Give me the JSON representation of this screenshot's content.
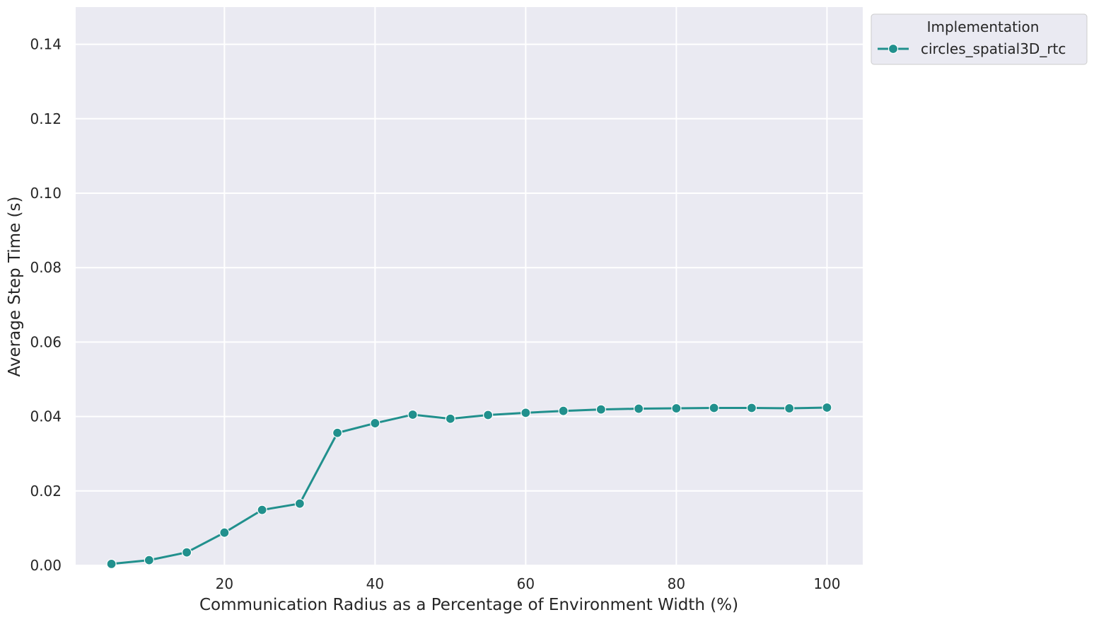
{
  "chart_data": {
    "type": "line",
    "title": "",
    "xlabel": "Communication Radius as a Percentage of Environment Width (%)",
    "ylabel": "Average Step Time (s)",
    "xlim": [
      0.25,
      104.75
    ],
    "ylim": [
      0,
      0.15
    ],
    "xticks": [
      20,
      40,
      60,
      80,
      100
    ],
    "yticks": [
      0.0,
      0.02,
      0.04,
      0.06,
      0.08,
      0.1,
      0.12,
      0.14
    ],
    "xtick_labels": [
      "20",
      "40",
      "60",
      "80",
      "100"
    ],
    "ytick_labels": [
      "0.00",
      "0.02",
      "0.04",
      "0.06",
      "0.08",
      "0.10",
      "0.12",
      "0.14"
    ],
    "grid": true,
    "legend": {
      "title": "Implementation",
      "placement": "outside-top-right"
    },
    "series": [
      {
        "name": "circles_spatial3D_rtc",
        "color": "#21908d",
        "marker": "circle",
        "x": [
          5,
          10,
          15,
          20,
          25,
          30,
          35,
          40,
          45,
          50,
          55,
          60,
          65,
          70,
          75,
          80,
          85,
          90,
          95,
          100
        ],
        "y": [
          0.0004,
          0.0014,
          0.0035,
          0.0088,
          0.0149,
          0.0166,
          0.0356,
          0.0382,
          0.0405,
          0.0394,
          0.0404,
          0.041,
          0.0415,
          0.0419,
          0.0421,
          0.0422,
          0.0423,
          0.0423,
          0.0422,
          0.0424
        ]
      }
    ]
  }
}
